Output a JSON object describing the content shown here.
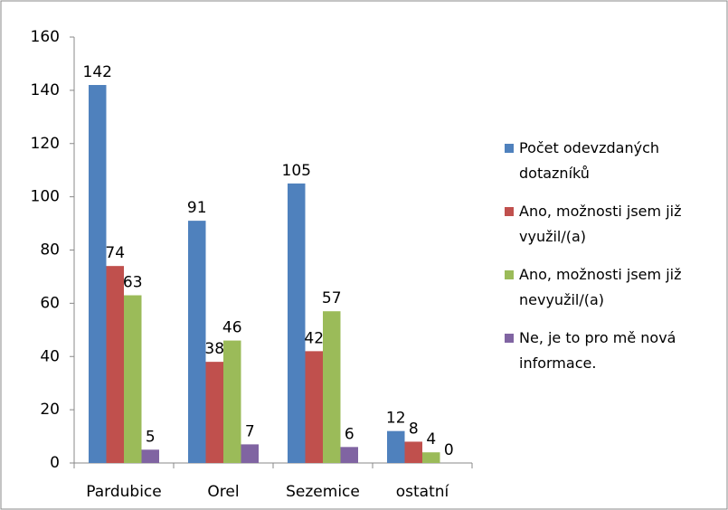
{
  "chart_data": {
    "type": "bar",
    "categories": [
      "Pardubice",
      "Orel",
      "Sezemice",
      "ostatní"
    ],
    "series": [
      {
        "name": "Počet odevzdaných dotazníků",
        "color": "#4f81bd",
        "values": [
          142,
          91,
          105,
          12
        ]
      },
      {
        "name": "Ano, možnosti jsem již využil/(a)",
        "color": "#c0504d",
        "values": [
          74,
          38,
          42,
          8
        ]
      },
      {
        "name": "Ano, možnosti jsem již nevyužil/(a)",
        "color": "#9bbb59",
        "values": [
          63,
          46,
          57,
          4
        ]
      },
      {
        "name": "Ne, je to pro mě nová informace.",
        "color": "#8064a2",
        "values": [
          5,
          7,
          6,
          0
        ]
      }
    ],
    "ylim": [
      0,
      160
    ],
    "yticks": [
      0,
      20,
      40,
      60,
      80,
      100,
      120,
      140,
      160
    ],
    "legend": "right"
  }
}
